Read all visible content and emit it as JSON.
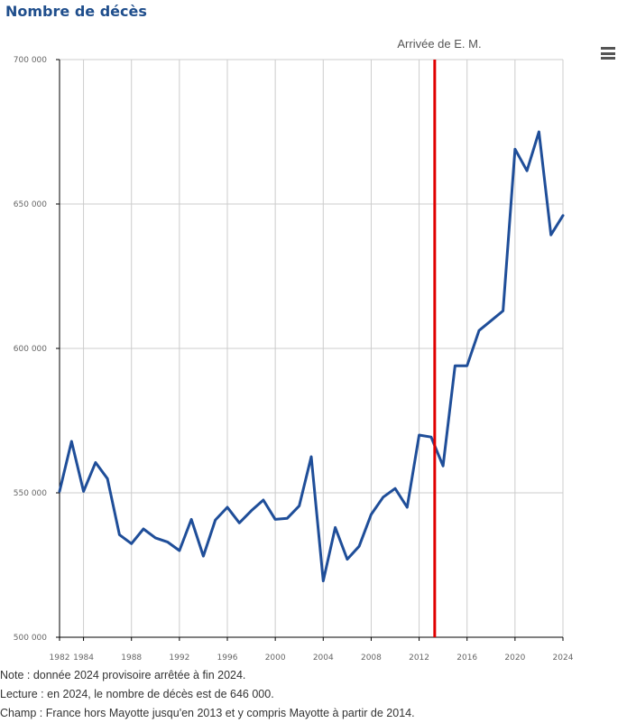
{
  "title": "Nombre de décès",
  "menu_icon": "hamburger-menu-icon",
  "chart_data": {
    "type": "line",
    "x": [
      1982,
      1983,
      1984,
      1985,
      1986,
      1987,
      1988,
      1989,
      1990,
      1991,
      1992,
      1993,
      1994,
      1995,
      1996,
      1997,
      1998,
      1999,
      2000,
      2001,
      2002,
      2003,
      2004,
      2005,
      2006,
      2007,
      2008,
      2009,
      2010,
      2011,
      2012,
      2013,
      2014,
      2015,
      2016,
      2017,
      2018,
      2019,
      2020,
      2021,
      2022,
      2023,
      2024
    ],
    "series": [
      {
        "color": "#1f4e99",
        "values": [
          550500,
          567800,
          550500,
          560500,
          554900,
          535500,
          532400,
          537500,
          534400,
          533000,
          530000,
          540800,
          528100,
          540600,
          545000,
          539600,
          543800,
          547500,
          540800,
          541200,
          545500,
          562500,
          519500,
          538000,
          527000,
          531500,
          542500,
          548500,
          551500,
          545000,
          570000,
          569300,
          559300,
          594000,
          594000,
          606200,
          609600,
          613000,
          669000,
          661500,
          675000,
          639300,
          646000
        ]
      }
    ],
    "xticks": [
      1982,
      1984,
      1988,
      1992,
      1996,
      2000,
      2004,
      2008,
      2012,
      2016,
      2020,
      2024
    ],
    "yticks": [
      500000,
      550000,
      600000,
      650000,
      700000
    ],
    "ytick_labels": [
      "500 000",
      "550 000",
      "600 000",
      "650 000",
      "700 000"
    ],
    "xlim": [
      1982,
      2024
    ],
    "ylim": [
      500000,
      700000
    ],
    "grid": true,
    "marker_line": {
      "x": 2013.3,
      "label": "Arrivée de E. M.",
      "color": "#e00000"
    },
    "axis_color": "#000000",
    "grid_color": "#cccccc"
  },
  "notes": [
    "Note : donnée 2024 provisoire arrêtée à fin 2024.",
    "Lecture : en 2024, le nombre de décès est de 646 000.",
    "Champ : France hors Mayotte jusqu'en 2013 et y compris Mayotte à partir de 2014."
  ]
}
